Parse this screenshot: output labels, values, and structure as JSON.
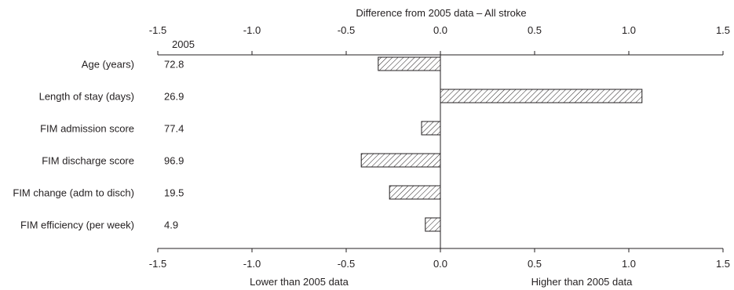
{
  "chart_data": {
    "type": "bar",
    "orientation": "horizontal",
    "title": "Difference from 2005 data – All stroke",
    "baseline_header": "2005",
    "categories": [
      "Age (years)",
      "Length of stay (days)",
      "FIM admission score",
      "FIM discharge score",
      "FIM change (adm to disch)",
      "FIM efficiency (per week)"
    ],
    "baseline_values": [
      "72.8",
      "26.9",
      "77.4",
      "96.9",
      "19.5",
      "4.9"
    ],
    "values": [
      -0.33,
      1.07,
      -0.1,
      -0.42,
      -0.27,
      -0.08
    ],
    "xlim": [
      -1.5,
      1.5
    ],
    "x_ticks": [
      -1.5,
      -1.0,
      -0.5,
      0.0,
      0.5,
      1.0,
      1.5
    ],
    "x_tick_labels": [
      "-1.5",
      "-1.0",
      "-0.5",
      "0.0",
      "0.5",
      "1.0",
      "1.5"
    ],
    "lower_label": "Lower than 2005 data",
    "higher_label": "Higher than 2005 data",
    "bar_fill": "hatched",
    "colors": {
      "ink": "#231f20",
      "background": "#ffffff"
    }
  }
}
